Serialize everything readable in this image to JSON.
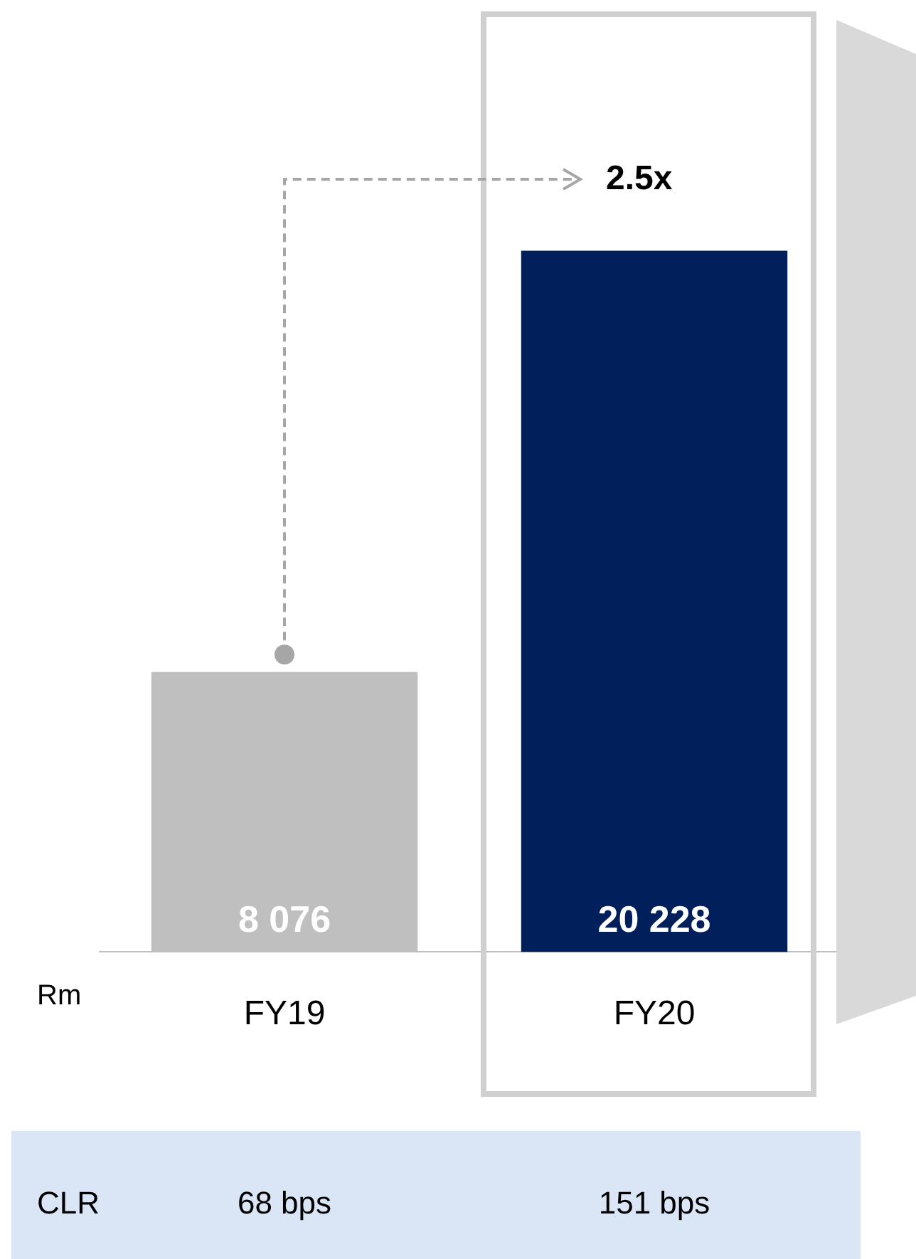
{
  "chart_data": {
    "type": "bar",
    "ylabel": "Rm",
    "categories": [
      "FY19",
      "FY20"
    ],
    "values": [
      8076,
      20228
    ],
    "colors": [
      "#bfbfbf",
      "#001f5b"
    ],
    "data_labels": true,
    "annotations": [
      "2.5x",
      "CLR",
      "68 bps",
      "151 bps"
    ]
  }
}
